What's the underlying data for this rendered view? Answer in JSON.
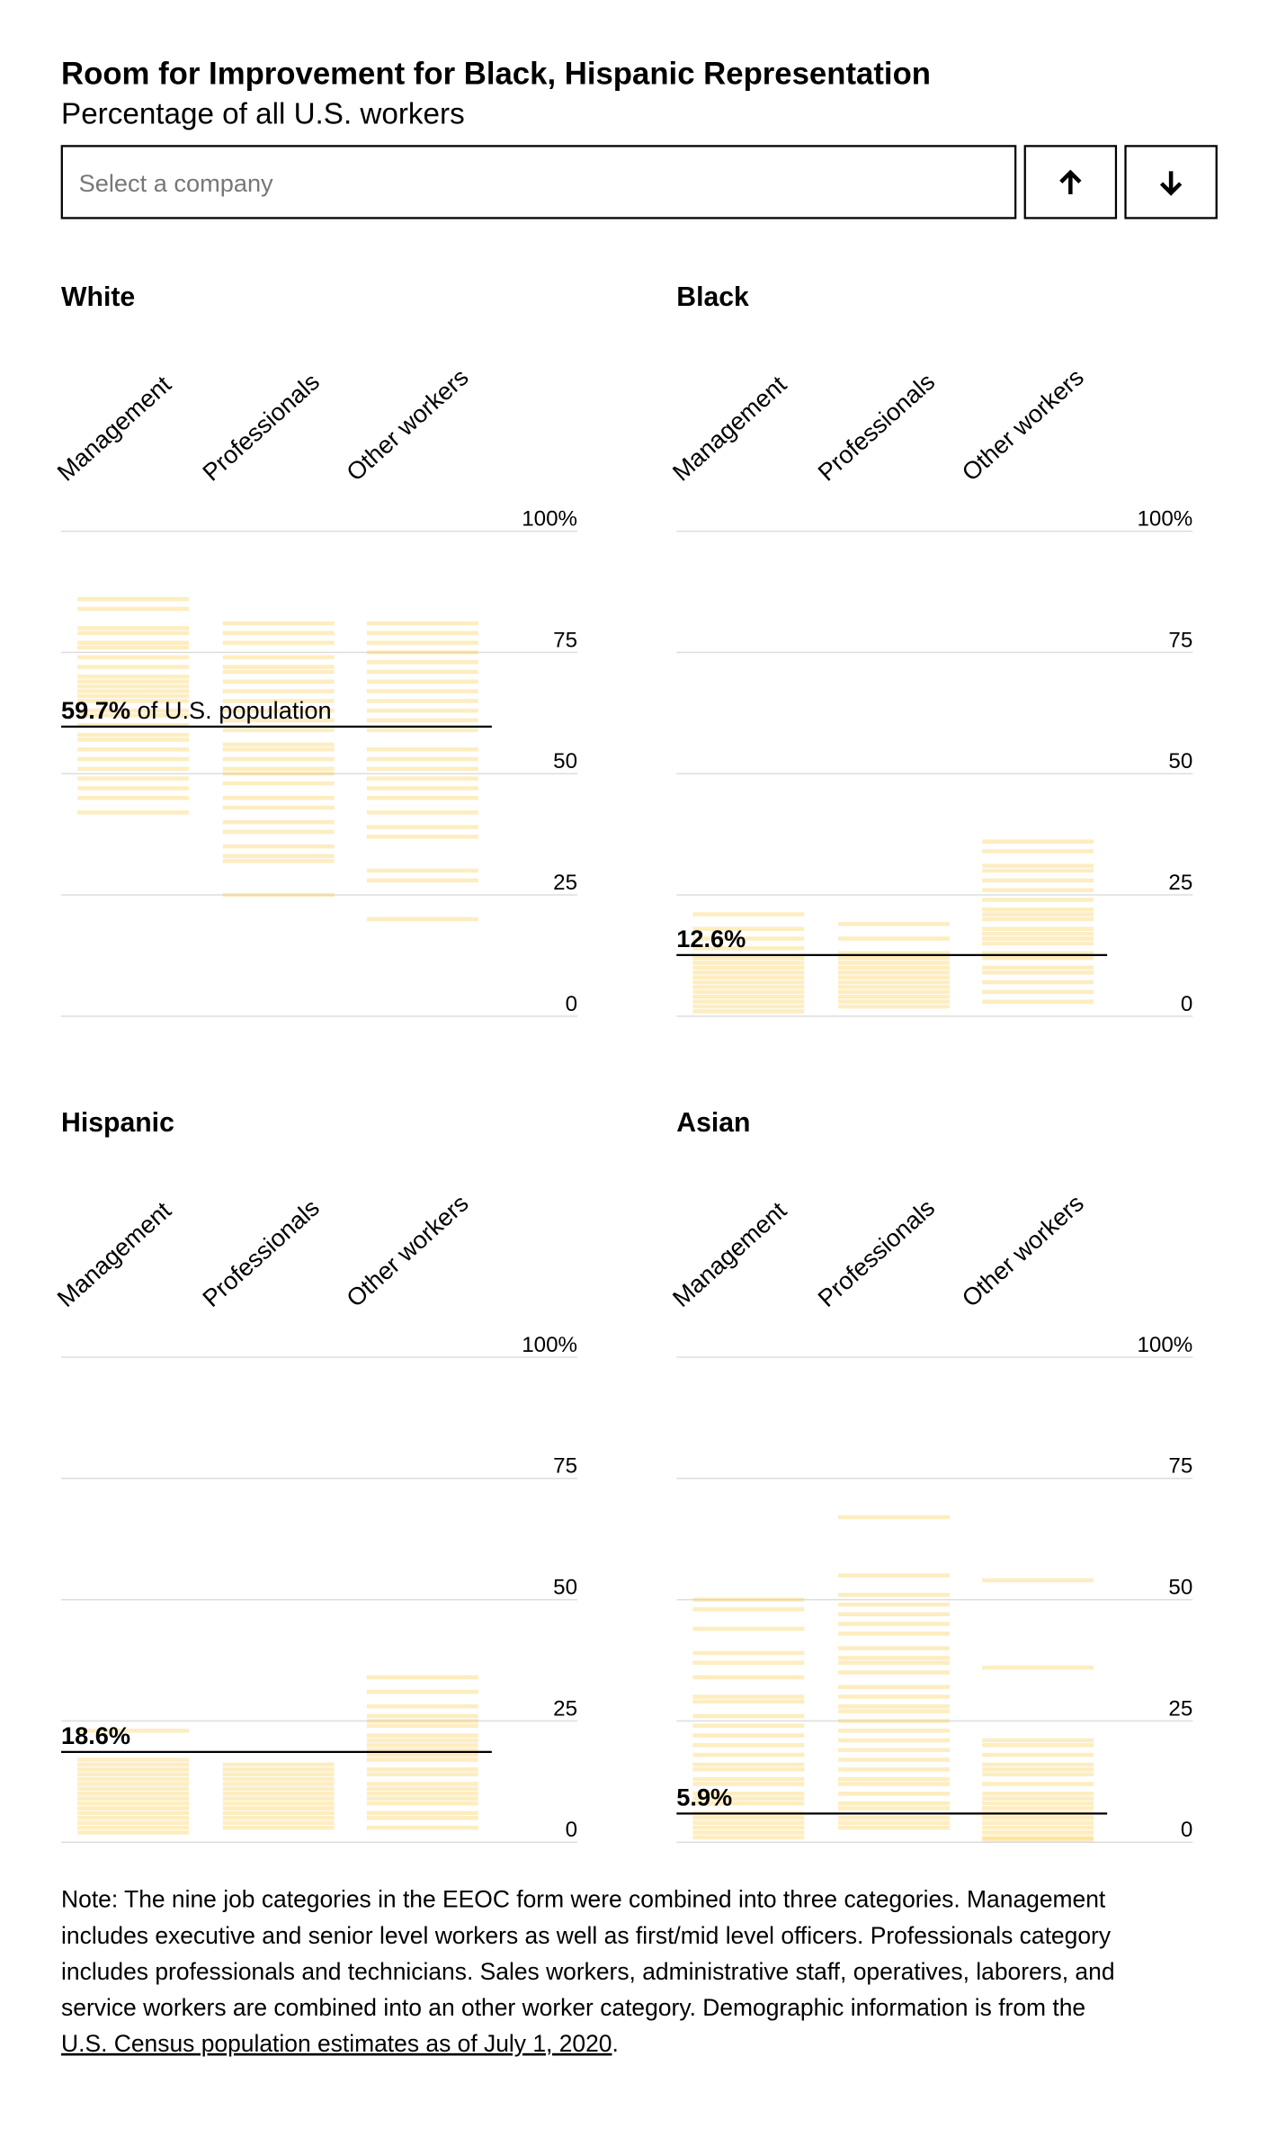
{
  "title": "Room for Improvement for Black, Hispanic Representation",
  "subtitle": "Percentage of all U.S. workers",
  "search_placeholder": "Select a company",
  "note_lines": [
    "Note: The nine job categories in the EEOC form were combined into three categories. Management",
    "includes executive and senior level workers as well as first/mid level officers. Professionals category",
    "includes professionals and technicians. Sales workers, administrative staff, operatives, laborers, and",
    "service workers are combined into an other worker category. Demographic information is from the"
  ],
  "note_link": "U.S. Census population estimates as of July 1, 2020",
  "note_end": ".",
  "chart_data": [
    {
      "type": "strip",
      "title": "White",
      "categories": [
        "Management",
        "Professionals",
        "Other workers"
      ],
      "color": "#f9c22e",
      "values": [
        [
          86,
          84,
          80,
          79,
          77,
          76,
          74,
          72,
          70,
          69,
          68,
          67,
          66,
          65,
          63,
          62,
          60,
          58,
          57,
          55,
          53,
          51,
          49,
          47,
          45,
          42
        ],
        [
          81,
          79,
          77,
          74,
          72,
          71,
          69,
          67,
          65,
          63,
          61,
          59,
          56,
          55,
          53,
          51,
          50,
          48,
          45,
          43,
          40,
          38,
          35,
          33,
          32,
          25
        ],
        [
          81,
          79,
          77,
          75,
          73,
          71,
          69,
          67,
          65,
          63,
          61,
          59,
          55,
          53,
          51,
          49,
          47,
          45,
          42,
          39,
          37,
          30,
          28,
          20
        ]
      ],
      "reference_value": 59.7,
      "reference_label": "59.7%",
      "reference_text": "of U.S. population",
      "ylim": [
        0,
        100
      ],
      "yticks": [
        0,
        25,
        50,
        75,
        {
          "value": 100,
          "label": "100%"
        }
      ],
      "grid": true
    },
    {
      "type": "strip",
      "title": "Black",
      "categories": [
        "Management",
        "Professionals",
        "Other workers"
      ],
      "color": "#f9c22e",
      "values": [
        [
          21,
          18,
          16,
          14,
          12,
          11,
          10,
          9,
          8,
          7,
          6,
          5,
          4,
          3,
          2,
          1
        ],
        [
          19,
          16,
          13,
          12,
          11,
          10,
          9,
          8,
          7,
          6,
          5,
          4,
          3,
          2
        ],
        [
          36,
          34,
          31,
          30,
          28,
          26,
          24,
          22,
          21,
          20,
          18,
          17,
          16,
          15,
          13,
          12,
          10,
          9,
          7,
          5,
          3
        ]
      ],
      "reference_value": 12.6,
      "reference_label": "12.6%",
      "ylim": [
        0,
        100
      ],
      "yticks": [
        0,
        25,
        50,
        75,
        {
          "value": 100,
          "label": "100%"
        }
      ],
      "grid": true
    },
    {
      "type": "strip",
      "title": "Hispanic",
      "categories": [
        "Management",
        "Professionals",
        "Other workers"
      ],
      "color": "#f9c22e",
      "values": [
        [
          23,
          17,
          16,
          15,
          14,
          13,
          12,
          11,
          10,
          9,
          8,
          7,
          6,
          5,
          4,
          3,
          2
        ],
        [
          16,
          15,
          14,
          13,
          12,
          11,
          10,
          9,
          8,
          7,
          6,
          5,
          4,
          3
        ],
        [
          34,
          31,
          28,
          26,
          25,
          24,
          22,
          21,
          20,
          19,
          18,
          17,
          15,
          14,
          12,
          11,
          10,
          9,
          8,
          6,
          5,
          3
        ]
      ],
      "reference_value": 18.6,
      "reference_label": "18.6%",
      "ylim": [
        0,
        100
      ],
      "yticks": [
        0,
        25,
        50,
        75,
        {
          "value": 100,
          "label": "100%"
        }
      ],
      "grid": true
    },
    {
      "type": "strip",
      "title": "Asian",
      "categories": [
        "Management",
        "Professionals",
        "Other workers"
      ],
      "color": "#f9c22e",
      "values": [
        [
          50,
          48,
          44,
          39,
          37,
          34,
          30,
          29,
          26,
          24,
          22,
          20,
          18,
          16,
          15,
          13,
          12,
          10,
          9,
          8,
          6,
          5,
          4,
          3,
          2,
          1
        ],
        [
          67,
          55,
          51,
          49,
          47,
          45,
          43,
          40,
          38,
          37,
          35,
          32,
          30,
          28,
          27,
          25,
          23,
          21,
          19,
          17,
          15,
          13,
          12,
          10,
          8,
          7,
          5,
          4,
          3
        ],
        [
          54,
          36,
          21,
          20,
          18,
          16,
          15,
          14,
          12,
          10,
          9,
          8,
          7,
          6,
          5,
          4,
          3,
          2,
          1,
          0.5
        ]
      ],
      "reference_value": 5.9,
      "reference_label": "5.9%",
      "ylim": [
        0,
        100
      ],
      "yticks": [
        0,
        25,
        50,
        75,
        {
          "value": 100,
          "label": "100%"
        }
      ],
      "grid": true
    }
  ]
}
